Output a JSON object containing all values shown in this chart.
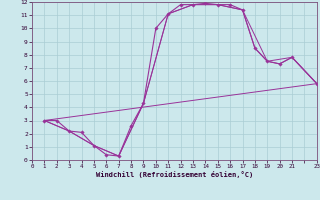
{
  "xlabel": "Windchill (Refroidissement éolien,°C)",
  "bg_color": "#cce8ec",
  "grid_color": "#aacdd4",
  "line_color": "#993399",
  "spine_color": "#7b4f7b",
  "xlim": [
    0,
    23
  ],
  "ylim": [
    0,
    12
  ],
  "xtick_labels": [
    "0",
    "1",
    "2",
    "3",
    "4",
    "5",
    "6",
    "7",
    "8",
    "9",
    "10",
    "11",
    "12",
    "13",
    "14",
    "15",
    "16",
    "17",
    "18",
    "19",
    "20",
    "21",
    "",
    "23"
  ],
  "xtick_positions": [
    0,
    1,
    2,
    3,
    4,
    5,
    6,
    7,
    8,
    9,
    10,
    11,
    12,
    13,
    14,
    15,
    16,
    17,
    18,
    19,
    20,
    21,
    22,
    23
  ],
  "ytick_labels": [
    "0",
    "1",
    "2",
    "3",
    "4",
    "5",
    "6",
    "7",
    "8",
    "9",
    "10",
    "11",
    "12"
  ],
  "ytick_positions": [
    0,
    1,
    2,
    3,
    4,
    5,
    6,
    7,
    8,
    9,
    10,
    11,
    12
  ],
  "line1_x": [
    1,
    2,
    3,
    4,
    5,
    6,
    7,
    8,
    9,
    10,
    11,
    12,
    13,
    14,
    15,
    16,
    17,
    18,
    19,
    20,
    21,
    23
  ],
  "line1_y": [
    3.0,
    3.0,
    2.2,
    2.1,
    1.1,
    0.4,
    0.3,
    2.6,
    4.3,
    10.0,
    11.1,
    11.8,
    11.8,
    11.9,
    11.8,
    11.8,
    11.4,
    8.5,
    7.5,
    7.3,
    7.8,
    5.8
  ],
  "line2_x": [
    1,
    23
  ],
  "line2_y": [
    3.0,
    5.8
  ],
  "line3_x": [
    1,
    3,
    5,
    7,
    9,
    11,
    13,
    15,
    17,
    18,
    19,
    20,
    21,
    23
  ],
  "line3_y": [
    3.0,
    2.2,
    1.1,
    0.3,
    4.3,
    11.1,
    11.8,
    11.8,
    11.4,
    8.5,
    7.5,
    7.3,
    7.8,
    5.8
  ],
  "line4_x": [
    1,
    3,
    5,
    7,
    9,
    11,
    13,
    15,
    17,
    19,
    21,
    23
  ],
  "line4_y": [
    3.0,
    2.2,
    1.1,
    0.3,
    4.3,
    11.1,
    11.8,
    11.8,
    11.4,
    7.5,
    7.8,
    5.8
  ]
}
